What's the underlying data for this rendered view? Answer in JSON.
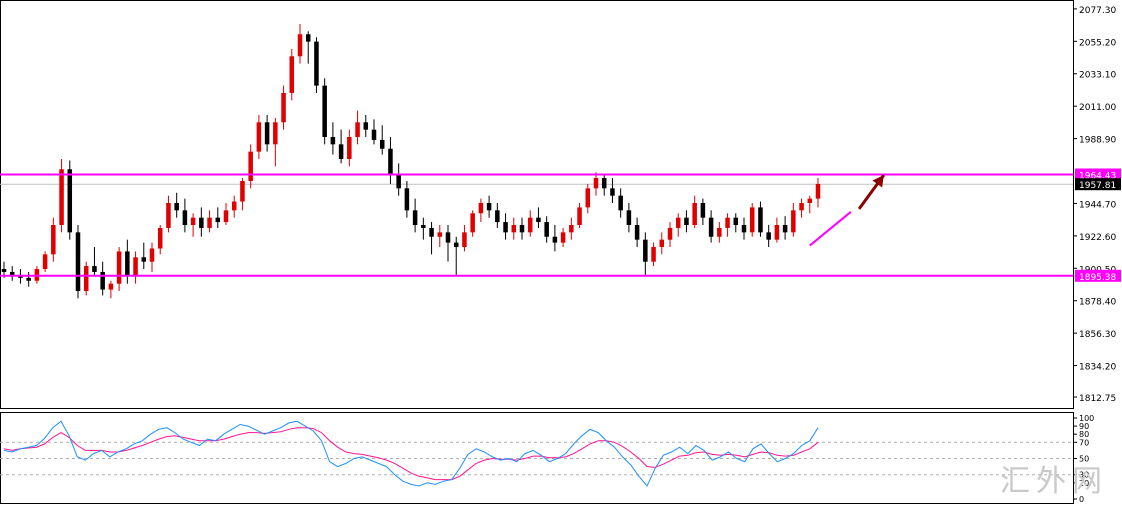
{
  "watermark": "汇外网",
  "chart_data": [
    {
      "type": "candlestick",
      "title": "",
      "ylim": [
        1808,
        2082
      ],
      "y_ticks": [
        "2077.30",
        "2055.20",
        "2033.10",
        "2011.00",
        "1988.90",
        "1964.43",
        "1957.81",
        "1944.70",
        "1922.60",
        "1900.50",
        "1895.38",
        "1878.40",
        "1856.30",
        "1834.20",
        "1812.75"
      ],
      "current_price": 1957.81,
      "horizontal_levels": [
        {
          "value": 1964.43,
          "label": "1964.43",
          "color": "#ff00ff"
        },
        {
          "value": 1895.38,
          "label": "1895.38",
          "color": "#ff00ff"
        }
      ],
      "colors": {
        "up": "#e00000",
        "down": "#000000",
        "trendline": "#ff00ff",
        "arrow": "#8b0000",
        "current_line": "#c0c0c0"
      },
      "trendline": [
        [
          98,
          1916
        ],
        [
          103,
          1939
        ]
      ],
      "arrow": {
        "from": [
          104,
          1941
        ],
        "to": [
          107,
          1964
        ]
      },
      "ohlc": [
        [
          1900,
          1905,
          1894,
          1898
        ],
        [
          1898,
          1902,
          1892,
          1896
        ],
        [
          1896,
          1900,
          1890,
          1894
        ],
        [
          1894,
          1898,
          1888,
          1892
        ],
        [
          1892,
          1902,
          1890,
          1900
        ],
        [
          1900,
          1912,
          1898,
          1910
        ],
        [
          1910,
          1935,
          1905,
          1930
        ],
        [
          1930,
          1975,
          1925,
          1968
        ],
        [
          1968,
          1974,
          1920,
          1925
        ],
        [
          1925,
          1930,
          1880,
          1885
        ],
        [
          1885,
          1905,
          1882,
          1902
        ],
        [
          1902,
          1915,
          1895,
          1898
        ],
        [
          1898,
          1905,
          1882,
          1886
        ],
        [
          1886,
          1892,
          1880,
          1890
        ],
        [
          1890,
          1915,
          1885,
          1912
        ],
        [
          1912,
          1920,
          1890,
          1895
        ],
        [
          1895,
          1912,
          1890,
          1908
        ],
        [
          1908,
          1918,
          1900,
          1905
        ],
        [
          1905,
          1918,
          1898,
          1914
        ],
        [
          1914,
          1930,
          1910,
          1928
        ],
        [
          1928,
          1950,
          1925,
          1945
        ],
        [
          1945,
          1952,
          1935,
          1940
        ],
        [
          1940,
          1948,
          1925,
          1930
        ],
        [
          1930,
          1938,
          1922,
          1935
        ],
        [
          1935,
          1942,
          1922,
          1928
        ],
        [
          1928,
          1940,
          1925,
          1935
        ],
        [
          1935,
          1942,
          1928,
          1932
        ],
        [
          1932,
          1945,
          1930,
          1940
        ],
        [
          1940,
          1950,
          1935,
          1946
        ],
        [
          1946,
          1962,
          1940,
          1960
        ],
        [
          1960,
          1985,
          1955,
          1980
        ],
        [
          1980,
          2005,
          1975,
          2000
        ],
        [
          2000,
          2005,
          1980,
          1985
        ],
        [
          1985,
          2003,
          1970,
          2000
        ],
        [
          2000,
          2025,
          1995,
          2020
        ],
        [
          2020,
          2050,
          2015,
          2045
        ],
        [
          2045,
          2067,
          2040,
          2060
        ],
        [
          2060,
          2062,
          2040,
          2055
        ],
        [
          2055,
          2058,
          2020,
          2025
        ],
        [
          2025,
          2030,
          1985,
          1990
        ],
        [
          1990,
          2000,
          1978,
          1985
        ],
        [
          1985,
          1995,
          1972,
          1975
        ],
        [
          1975,
          1995,
          1970,
          1990
        ],
        [
          1990,
          2008,
          1985,
          2000
        ],
        [
          2000,
          2005,
          1990,
          1995
        ],
        [
          1995,
          2002,
          1985,
          1988
        ],
        [
          1988,
          1998,
          1978,
          1982
        ],
        [
          1982,
          1990,
          1958,
          1965
        ],
        [
          1965,
          1972,
          1950,
          1955
        ],
        [
          1955,
          1960,
          1935,
          1940
        ],
        [
          1940,
          1948,
          1925,
          1930
        ],
        [
          1930,
          1935,
          1920,
          1928
        ],
        [
          1928,
          1932,
          1910,
          1922
        ],
        [
          1922,
          1930,
          1915,
          1925
        ],
        [
          1925,
          1930,
          1905,
          1918
        ],
        [
          1918,
          1922,
          1895,
          1915
        ],
        [
          1915,
          1930,
          1912,
          1925
        ],
        [
          1925,
          1940,
          1922,
          1938
        ],
        [
          1938,
          1948,
          1932,
          1945
        ],
        [
          1945,
          1950,
          1935,
          1940
        ],
        [
          1940,
          1945,
          1928,
          1932
        ],
        [
          1932,
          1938,
          1920,
          1925
        ],
        [
          1925,
          1935,
          1920,
          1930
        ],
        [
          1930,
          1935,
          1920,
          1925
        ],
        [
          1925,
          1940,
          1922,
          1935
        ],
        [
          1935,
          1942,
          1928,
          1932
        ],
        [
          1932,
          1936,
          1918,
          1922
        ],
        [
          1922,
          1930,
          1912,
          1918
        ],
        [
          1918,
          1928,
          1915,
          1925
        ],
        [
          1925,
          1935,
          1920,
          1930
        ],
        [
          1930,
          1945,
          1928,
          1942
        ],
        [
          1942,
          1958,
          1938,
          1955
        ],
        [
          1955,
          1966,
          1950,
          1962
        ],
        [
          1962,
          1964,
          1950,
          1955
        ],
        [
          1955,
          1962,
          1945,
          1950
        ],
        [
          1950,
          1955,
          1935,
          1940
        ],
        [
          1940,
          1945,
          1925,
          1930
        ],
        [
          1930,
          1935,
          1915,
          1920
        ],
        [
          1920,
          1925,
          1895,
          1905
        ],
        [
          1905,
          1918,
          1902,
          1915
        ],
        [
          1915,
          1925,
          1910,
          1920
        ],
        [
          1920,
          1932,
          1915,
          1928
        ],
        [
          1928,
          1938,
          1922,
          1935
        ],
        [
          1935,
          1940,
          1925,
          1930
        ],
        [
          1930,
          1950,
          1928,
          1945
        ],
        [
          1945,
          1948,
          1930,
          1935
        ],
        [
          1935,
          1940,
          1918,
          1922
        ],
        [
          1922,
          1932,
          1918,
          1928
        ],
        [
          1928,
          1938,
          1922,
          1935
        ],
        [
          1935,
          1938,
          1925,
          1930
        ],
        [
          1930,
          1935,
          1920,
          1925
        ],
        [
          1925,
          1945,
          1922,
          1942
        ],
        [
          1942,
          1946,
          1922,
          1925
        ],
        [
          1925,
          1930,
          1915,
          1920
        ],
        [
          1920,
          1935,
          1918,
          1930
        ],
        [
          1930,
          1936,
          1920,
          1925
        ],
        [
          1925,
          1945,
          1922,
          1940
        ],
        [
          1940,
          1948,
          1935,
          1945
        ],
        [
          1945,
          1950,
          1938,
          1948
        ],
        [
          1948,
          1962,
          1942,
          1958
        ]
      ]
    },
    {
      "type": "line",
      "title": "",
      "ylim": [
        0,
        100
      ],
      "y_ticks": [
        "100",
        "90",
        "80",
        "70",
        "50",
        "30",
        "20",
        "0"
      ],
      "levels": [
        30,
        50,
        70
      ],
      "colors": {
        "fast": "#1e90ff",
        "slow": "#ff1493",
        "level": "#b0b0b0"
      },
      "series": [
        {
          "values": [
            60,
            58,
            62,
            64,
            66,
            75,
            88,
            96,
            78,
            52,
            48,
            56,
            60,
            52,
            58,
            62,
            68,
            72,
            80,
            86,
            88,
            82,
            74,
            70,
            66,
            74,
            72,
            80,
            86,
            92,
            90,
            85,
            80,
            84,
            88,
            94,
            96,
            90,
            84,
            72,
            46,
            40,
            44,
            50,
            52,
            48,
            44,
            40,
            30,
            22,
            18,
            16,
            20,
            18,
            22,
            24,
            38,
            55,
            62,
            58,
            52,
            48,
            50,
            46,
            56,
            60,
            54,
            46,
            50,
            56,
            68,
            78,
            86,
            82,
            72,
            64,
            52,
            42,
            28,
            16,
            38,
            54,
            58,
            64,
            56,
            66,
            60,
            48,
            52,
            58,
            50,
            46,
            62,
            68,
            56,
            46,
            50,
            56,
            66,
            72,
            88
          ]
        },
        {
          "values": [
            62,
            60,
            62,
            63,
            64,
            68,
            76,
            82,
            76,
            66,
            60,
            60,
            60,
            58,
            58,
            60,
            63,
            66,
            70,
            74,
            77,
            78,
            76,
            74,
            72,
            72,
            72,
            74,
            77,
            80,
            82,
            82,
            81,
            82,
            83,
            86,
            88,
            88,
            87,
            82,
            72,
            64,
            58,
            56,
            55,
            53,
            51,
            48,
            44,
            38,
            32,
            28,
            26,
            24,
            24,
            24,
            28,
            36,
            44,
            48,
            50,
            49,
            49,
            48,
            50,
            53,
            53,
            51,
            51,
            52,
            56,
            62,
            68,
            72,
            72,
            70,
            65,
            58,
            50,
            40,
            39,
            43,
            48,
            53,
            54,
            57,
            58,
            55,
            54,
            55,
            54,
            52,
            55,
            58,
            57,
            54,
            53,
            54,
            58,
            62,
            70
          ]
        }
      ]
    }
  ]
}
